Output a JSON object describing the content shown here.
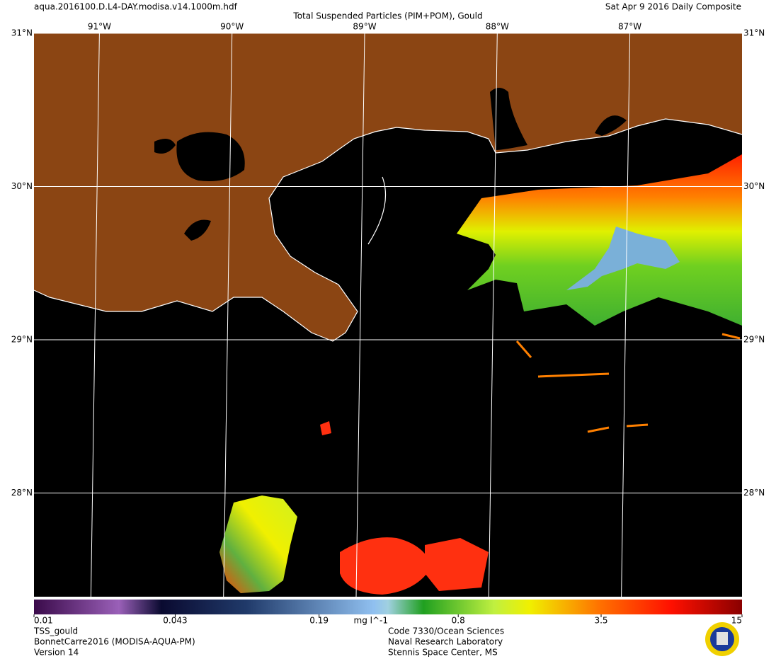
{
  "header": {
    "file": "aqua.2016100.D.L4-DAY.modisa.v14.1000m.hdf",
    "title": "Total Suspended Particles (PIM+POM), Gould",
    "date": "Sat Apr  9 2016 Daily Composite"
  },
  "map": {
    "lon_ticks": [
      {
        "value": -91,
        "label": "91°W"
      },
      {
        "value": -90,
        "label": "90°W"
      },
      {
        "value": -89,
        "label": "89°W"
      },
      {
        "value": -88,
        "label": "88°W"
      },
      {
        "value": -87,
        "label": "87°W"
      }
    ],
    "lat_ticks": [
      {
        "value": 31,
        "label": "31°N"
      },
      {
        "value": 30,
        "label": "30°N"
      },
      {
        "value": 29,
        "label": "29°N"
      },
      {
        "value": 28,
        "label": "28°N"
      }
    ]
  },
  "colorbar": {
    "scale": "log",
    "range": [
      0.01,
      15
    ],
    "ticks": [
      0.01,
      0.043,
      0.19,
      0.8,
      3.5,
      15
    ],
    "unit": "mg l^-1"
  },
  "footer": {
    "left": [
      "TSS_gould",
      "BonnetCarre2016 (MODISA-AQUA-PM)",
      "Version 14"
    ],
    "center": [
      "Code 7330/Ocean Sciences",
      "Naval Research Laboratory",
      "Stennis Space Center, MS"
    ]
  }
}
